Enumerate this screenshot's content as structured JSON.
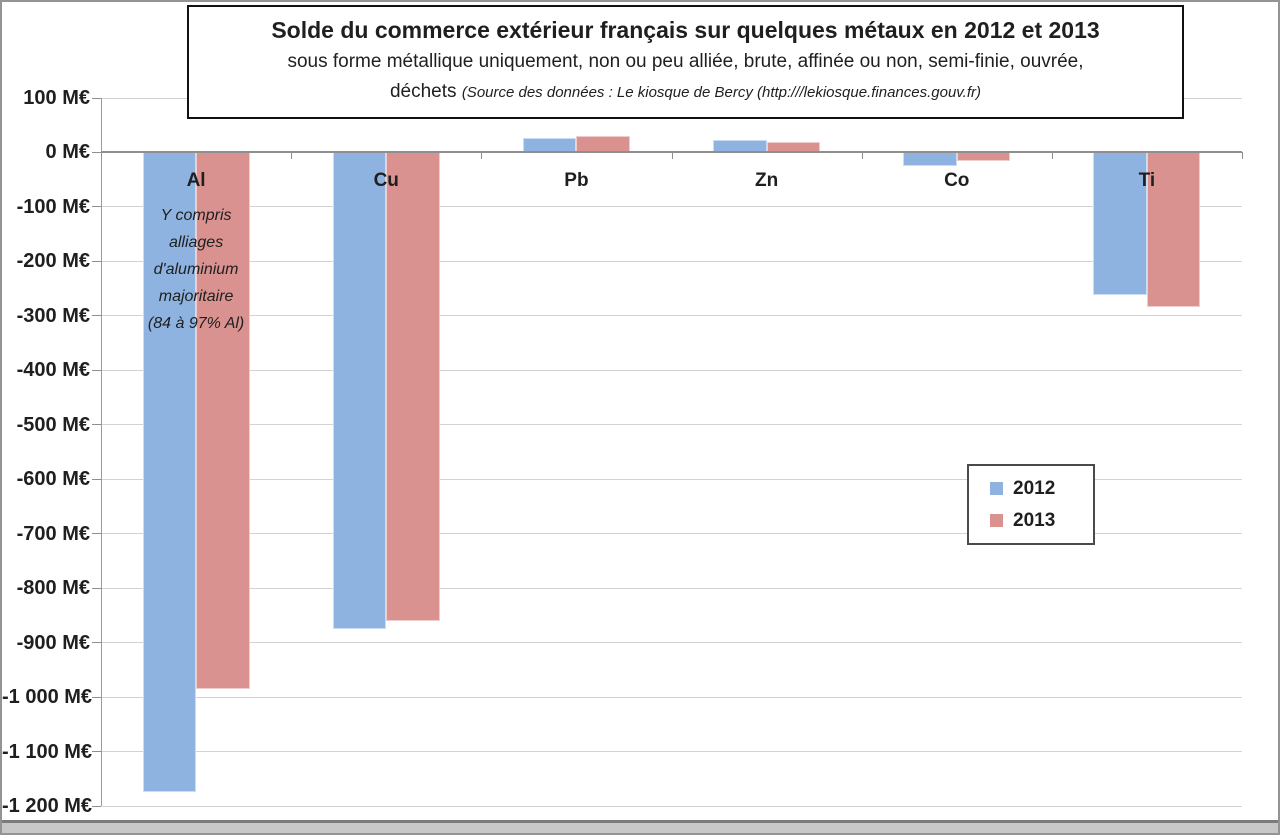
{
  "title_box": {
    "title": "Solde du commerce extérieur français sur quelques métaux en 2012 et 2013",
    "subtitle": "sous forme métallique uniquement, non ou peu alliée, brute, affinée ou non, semi-finie, ouvrée, déchets",
    "source_note": "(Source des données : Le kiosque de Bercy (http:///lekiosque.finances.gouv.fr)"
  },
  "legend": {
    "items": [
      {
        "label": "2012",
        "color": "#8EB3E0"
      },
      {
        "label": "2013",
        "color": "#D9928F"
      }
    ]
  },
  "chart_data": {
    "type": "bar",
    "categories": [
      "Al",
      "Cu",
      "Pb",
      "Zn",
      "Co",
      "Ti"
    ],
    "series": [
      {
        "name": "2012",
        "color": "#8EB3E0",
        "values": [
          -1175,
          -875,
          27,
          22,
          -25,
          -262
        ]
      },
      {
        "name": "2013",
        "color": "#D9928F",
        "values": [
          -985,
          -860,
          30,
          20,
          -15,
          -283
        ]
      }
    ],
    "unit": "M€",
    "ylim": [
      -1200,
      100
    ],
    "ytick_step": 100,
    "y_tick_labels": [
      "100 M€",
      "0 M€",
      "-100 M€",
      "-200 M€",
      "-300 M€",
      "-400 M€",
      "-500 M€",
      "-600 M€",
      "-700 M€",
      "-800 M€",
      "-900 M€",
      "-1 000 M€",
      "-1 100 M€",
      "-1 200 M€"
    ],
    "annotation": {
      "category": "Al",
      "lines": [
        "Y compris",
        "alliages",
        "d'aluminium",
        "majoritaire",
        "(84 à 97% Al)"
      ]
    },
    "grid": true,
    "legend_position": "middle-right"
  }
}
